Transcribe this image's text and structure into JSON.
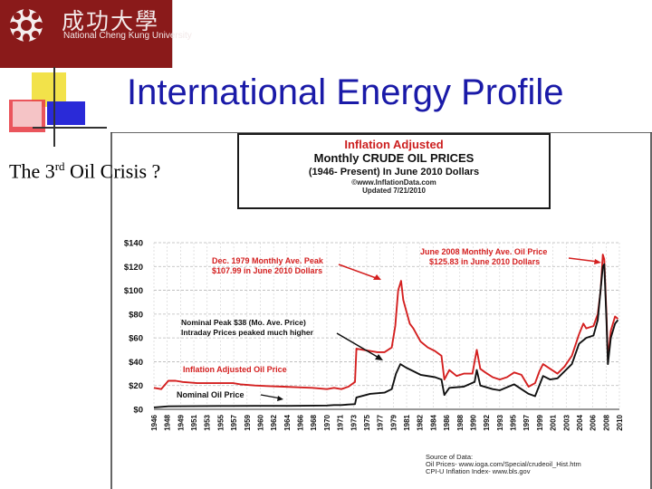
{
  "logo": {
    "chinese_name": "成功大學",
    "english_name": "National Cheng Kung University",
    "colors": {
      "background": "#8a1a1a",
      "text": "#f2e8e8"
    }
  },
  "slide": {
    "title": "International Energy Profile",
    "subtitle_prefix": "The 3",
    "subtitle_sup": "rd",
    "subtitle_suffix": " Oil Crisis ?",
    "title_color": "#1a1aa8"
  },
  "chart_header": {
    "line1": "Inflation Adjusted",
    "line2": "Monthly CRUDE OIL PRICES",
    "line3": "(1946- Present) In June 2010 Dollars",
    "line4": "©www.InflationData.com",
    "line5": "Updated 7/21/2010"
  },
  "source_note": {
    "line1": "Source of Data:",
    "line2": "Oil Prices- www.ioga.com/Special/crudeoil_Hist.htm",
    "line3": "CPI-U Inflation Index- www.bls.gov"
  },
  "chart_data": {
    "type": "line",
    "title": "Inflation Adjusted Monthly CRUDE OIL PRICES (1946- Present) In June 2010 Dollars",
    "xlabel": "",
    "ylabel": "",
    "xlim": [
      1946,
      2010.6
    ],
    "ylim": [
      0,
      140
    ],
    "y_ticks": [
      "$0",
      "$20",
      "$40",
      "$60",
      "$80",
      "$100",
      "$120",
      "$140"
    ],
    "y_tick_values": [
      0,
      20,
      40,
      60,
      80,
      100,
      120,
      140
    ],
    "x_ticks": [
      "1946",
      "1948",
      "1949",
      "1951",
      "1953",
      "1955",
      "1957",
      "1959",
      "1960",
      "1962",
      "1964",
      "1966",
      "1968",
      "1970",
      "1971",
      "1973",
      "1975",
      "1977",
      "1979",
      "1981",
      "1982",
      "1984",
      "1986",
      "1988",
      "1990",
      "1992",
      "1993",
      "1995",
      "1997",
      "1999",
      "2001",
      "2003",
      "2004",
      "2006",
      "2008",
      "2010"
    ],
    "grid": true,
    "colors": {
      "adjusted": "#d42020",
      "nominal": "#111111"
    },
    "series": [
      {
        "name": "Inflation Adjusted Oil Price",
        "color": "#d42020",
        "x": [
          1946,
          1947,
          1948,
          1949,
          1950,
          1952,
          1954,
          1957,
          1958,
          1960,
          1962,
          1964,
          1966,
          1968,
          1970,
          1971,
          1972,
          1973,
          1973.9,
          1974.1,
          1975,
          1976,
          1977,
          1978,
          1979,
          1979.5,
          1979.9,
          1980.3,
          1980.6,
          1981,
          1981.5,
          1982,
          1983,
          1984,
          1985,
          1985.9,
          1986.3,
          1987,
          1988,
          1989,
          1990.2,
          1990.8,
          1991.3,
          1992,
          1993,
          1994,
          1995,
          1996,
          1997,
          1998,
          1998.9,
          1999.5,
          2000,
          2001,
          2002,
          2003,
          2004,
          2005,
          2005.6,
          2006,
          2007,
          2007.6,
          2008.0,
          2008.3,
          2008.5,
          2008.8,
          2009.0,
          2009.4,
          2010.0,
          2010.4
        ],
        "y": [
          18,
          17,
          24,
          24,
          23,
          22,
          22,
          22,
          21,
          20,
          19.5,
          19,
          18.5,
          18,
          17,
          18,
          17,
          19,
          23,
          51,
          50,
          49,
          48,
          48,
          52,
          70,
          100,
          108,
          92,
          83,
          72,
          68,
          57,
          52,
          49,
          45,
          25,
          33,
          28,
          30,
          30,
          50,
          34,
          31,
          27,
          25,
          27,
          31,
          29,
          19,
          22,
          32,
          38,
          34,
          30,
          36,
          45,
          63,
          72,
          68,
          70,
          80,
          100,
          130,
          126,
          80,
          42,
          66,
          78,
          76
        ]
      },
      {
        "name": "Nominal Oil Price",
        "color": "#111111",
        "x": [
          1946,
          1948,
          1950,
          1955,
          1960,
          1965,
          1970,
          1971,
          1972,
          1973,
          1973.9,
          1974.1,
          1976,
          1978,
          1979,
          1979.6,
          1980.2,
          1981,
          1982,
          1983,
          1985,
          1985.9,
          1986.3,
          1987,
          1989,
          1990.5,
          1990.8,
          1991.3,
          1993,
          1994,
          1996,
          1998,
          1998.9,
          2000,
          2001,
          2002,
          2004,
          2005,
          2006,
          2007,
          2007.6,
          2008.3,
          2008.5,
          2008.8,
          2009.0,
          2009.4,
          2010.0,
          2010.4
        ],
        "y": [
          1.6,
          2.5,
          2.6,
          2.8,
          2.9,
          2.9,
          3.2,
          3.6,
          3.6,
          4,
          4.3,
          10,
          13,
          14,
          17,
          30,
          38,
          35,
          32,
          29,
          27,
          25,
          12,
          18,
          19,
          23,
          33,
          20,
          17,
          16,
          21,
          13,
          11,
          28,
          25,
          26,
          38,
          55,
          60,
          62,
          75,
          120,
          122,
          75,
          38,
          60,
          72,
          75
        ]
      }
    ],
    "annotations": [
      {
        "text_line1": "Dec. 1979 Monthly Ave. Peak",
        "text_line2": "$107.99 in June 2010 Dollars",
        "color": "#d42020"
      },
      {
        "text_line1": "June 2008 Monthly Ave. Oil Price",
        "text_line2": "$125.83 in June 2010 Dollars",
        "color": "#d42020"
      },
      {
        "text_line1": "Nominal Peak $38 (Mo. Ave. Price)",
        "text_line2": "Intraday Prices peaked much higher",
        "color": "#111111"
      },
      {
        "text_line1": "Inflation Adjusted Oil Price",
        "color": "#d42020"
      },
      {
        "text_line1": "Nominal Oil Price",
        "color": "#111111"
      }
    ]
  }
}
